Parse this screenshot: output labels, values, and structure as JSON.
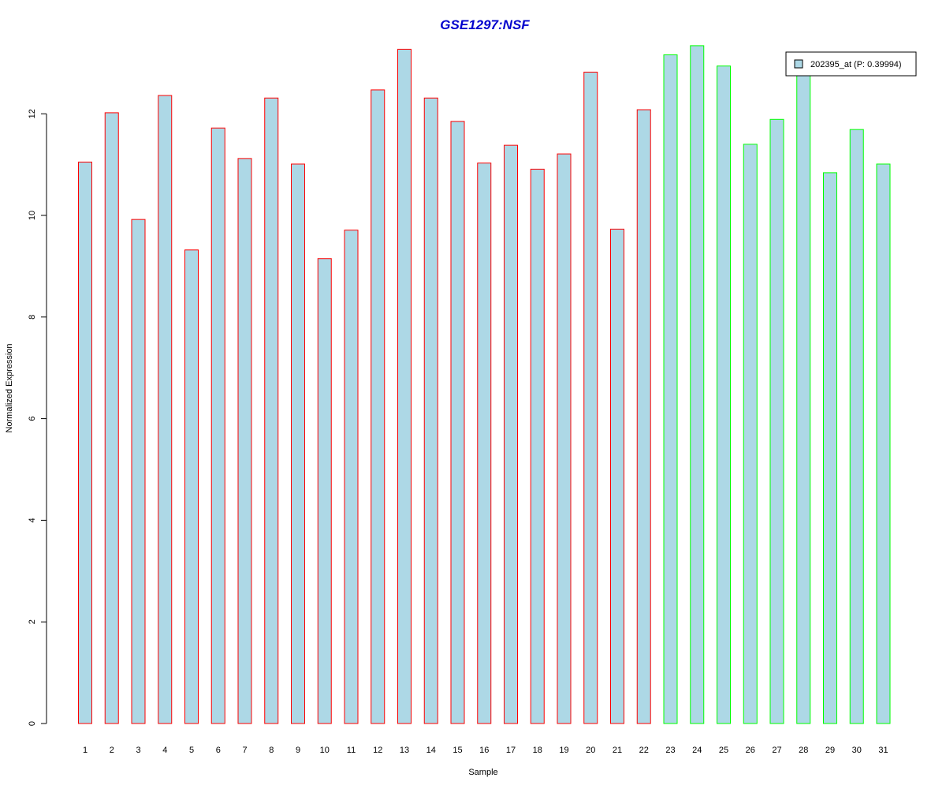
{
  "chart_data": {
    "type": "bar",
    "title": "GSE1297:NSF",
    "xlabel": "Sample",
    "ylabel": "Normalized Expression",
    "ylim": [
      0,
      13.5
    ],
    "yticks": [
      0,
      2,
      4,
      6,
      8,
      10,
      12
    ],
    "categories": [
      "1",
      "2",
      "3",
      "4",
      "5",
      "6",
      "7",
      "8",
      "9",
      "10",
      "11",
      "12",
      "13",
      "14",
      "15",
      "16",
      "17",
      "18",
      "19",
      "20",
      "21",
      "22",
      "23",
      "24",
      "25",
      "26",
      "27",
      "28",
      "29",
      "30",
      "31"
    ],
    "series": [
      {
        "name": "202395_at (P: 0.39994)",
        "values": [
          11.05,
          12.02,
          9.92,
          12.36,
          9.32,
          11.72,
          11.12,
          12.31,
          11.01,
          9.15,
          9.71,
          12.47,
          13.27,
          12.31,
          11.85,
          11.03,
          11.38,
          10.91,
          11.21,
          12.82,
          9.73,
          12.08,
          13.16,
          13.34,
          12.94,
          11.4,
          11.89,
          12.84,
          10.84,
          11.69,
          11.01
        ],
        "groups": [
          1,
          1,
          1,
          1,
          1,
          1,
          1,
          1,
          1,
          1,
          1,
          1,
          1,
          1,
          1,
          1,
          1,
          1,
          1,
          1,
          1,
          1,
          2,
          2,
          2,
          2,
          2,
          2,
          2,
          2,
          2
        ]
      }
    ],
    "colors": {
      "fill": "#add8e6",
      "group1_border": "#ff0000",
      "group2_border": "#00ff00",
      "title": "#0000cd"
    },
    "grid": false,
    "legend_position": "top-right"
  }
}
